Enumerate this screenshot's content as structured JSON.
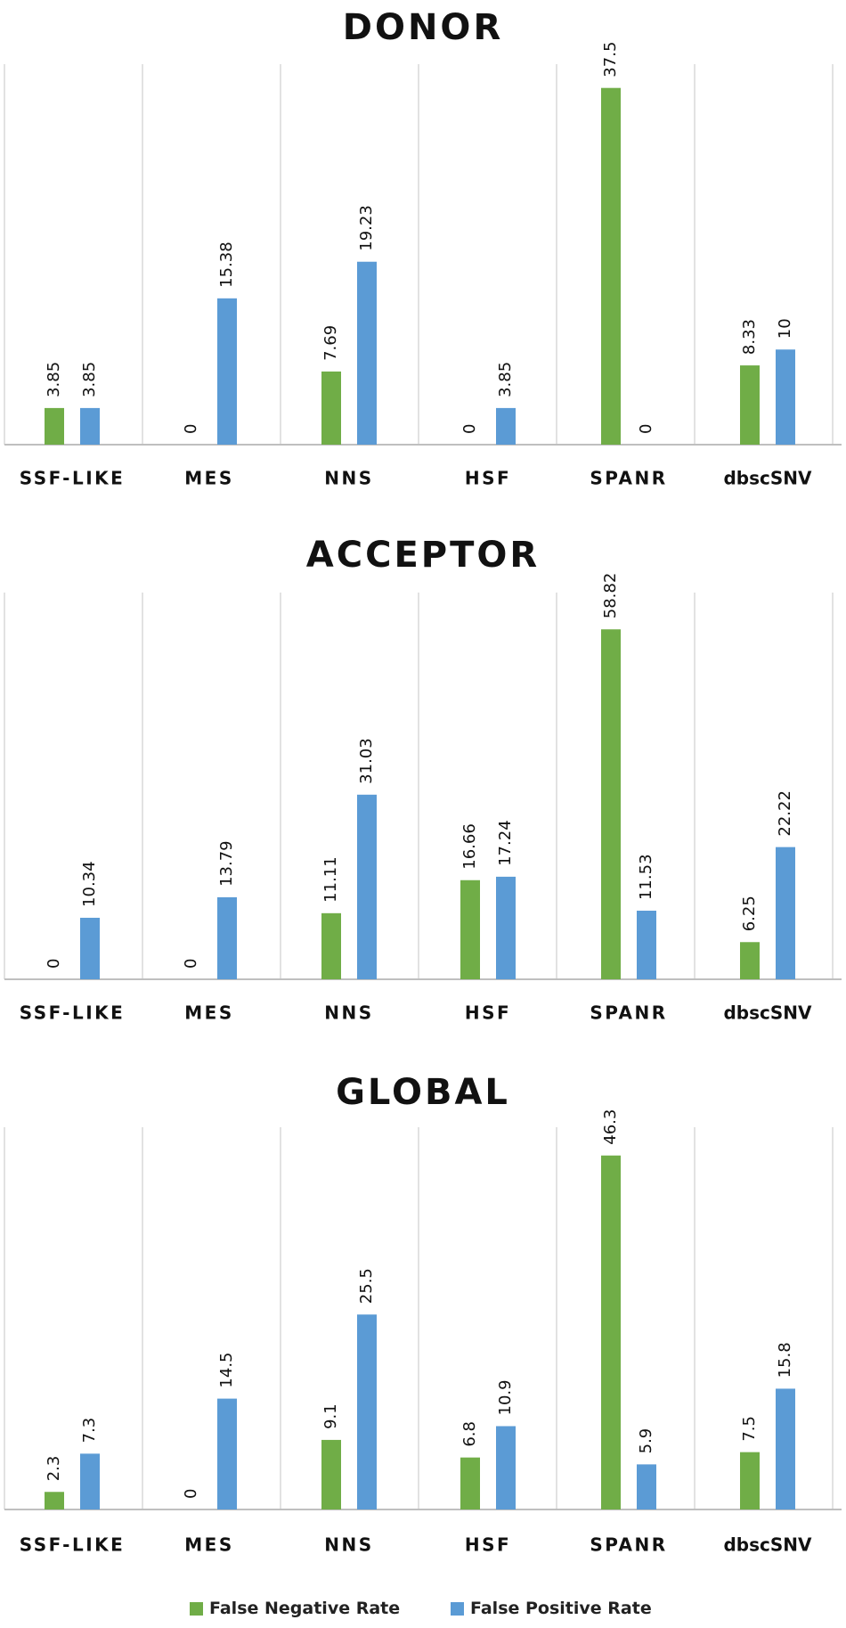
{
  "colors": {
    "fnr": "#70ad47",
    "fpr": "#5b9bd5",
    "grid": "#d9d9d9",
    "axis": "#bfbfbf",
    "text": "#111111"
  },
  "legend": [
    {
      "name": "False Negative Rate",
      "color": "#70ad47"
    },
    {
      "name": "False Positive Rate",
      "color": "#5b9bd5"
    }
  ],
  "chart_data": [
    {
      "type": "bar",
      "title": "DONOR",
      "categories": [
        "SSF-LIKE",
        "MES",
        "NNS",
        "HSF",
        "SPANR",
        "dbscSNV"
      ],
      "series": [
        {
          "name": "False Negative Rate",
          "values": [
            3.85,
            0,
            7.69,
            0,
            37.5,
            8.33
          ],
          "labels": [
            "3.85",
            "0",
            "7.69",
            "0",
            "37.5",
            "8.33"
          ]
        },
        {
          "name": "False Positive Rate",
          "values": [
            3.85,
            15.38,
            19.23,
            3.85,
            0,
            10
          ],
          "labels": [
            "3.85",
            "15.38",
            "19.23",
            "3.85",
            "0",
            "10"
          ]
        }
      ],
      "ylim": [
        0,
        40
      ],
      "grid": false,
      "legend_position": "bottom"
    },
    {
      "type": "bar",
      "title": "ACCEPTOR",
      "categories": [
        "SSF-LIKE",
        "MES",
        "NNS",
        "HSF",
        "SPANR",
        "dbscSNV"
      ],
      "series": [
        {
          "name": "False Negative Rate",
          "values": [
            0,
            0,
            11.11,
            16.66,
            58.82,
            6.25
          ],
          "labels": [
            "0",
            "0",
            "11.11",
            "16.66",
            "58.82",
            "6.25"
          ]
        },
        {
          "name": "False Positive Rate",
          "values": [
            10.34,
            13.79,
            31.03,
            17.24,
            11.53,
            22.22
          ],
          "labels": [
            "10.34",
            "13.79",
            "31.03",
            "17.24",
            "11.53",
            "22.22"
          ]
        }
      ],
      "ylim": [
        0,
        65
      ],
      "grid": false,
      "legend_position": "bottom"
    },
    {
      "type": "bar",
      "title": "GLOBAL",
      "categories": [
        "SSF-LIKE",
        "MES",
        "NNS",
        "HSF",
        "SPANR",
        "dbscSNV"
      ],
      "series": [
        {
          "name": "False Negative Rate",
          "values": [
            2.3,
            0,
            9.1,
            6.8,
            46.3,
            7.5
          ],
          "labels": [
            "2.3",
            "0",
            "9.1",
            "6.8",
            "46.3",
            "7.5"
          ]
        },
        {
          "name": "False Positive Rate",
          "values": [
            7.3,
            14.5,
            25.5,
            10.9,
            5.9,
            15.8
          ],
          "labels": [
            "7.3",
            "14.5",
            "25.5",
            "10.9",
            "5.9",
            "15.8"
          ]
        }
      ],
      "ylim": [
        0,
        50
      ],
      "grid": false,
      "legend_position": "bottom"
    }
  ]
}
